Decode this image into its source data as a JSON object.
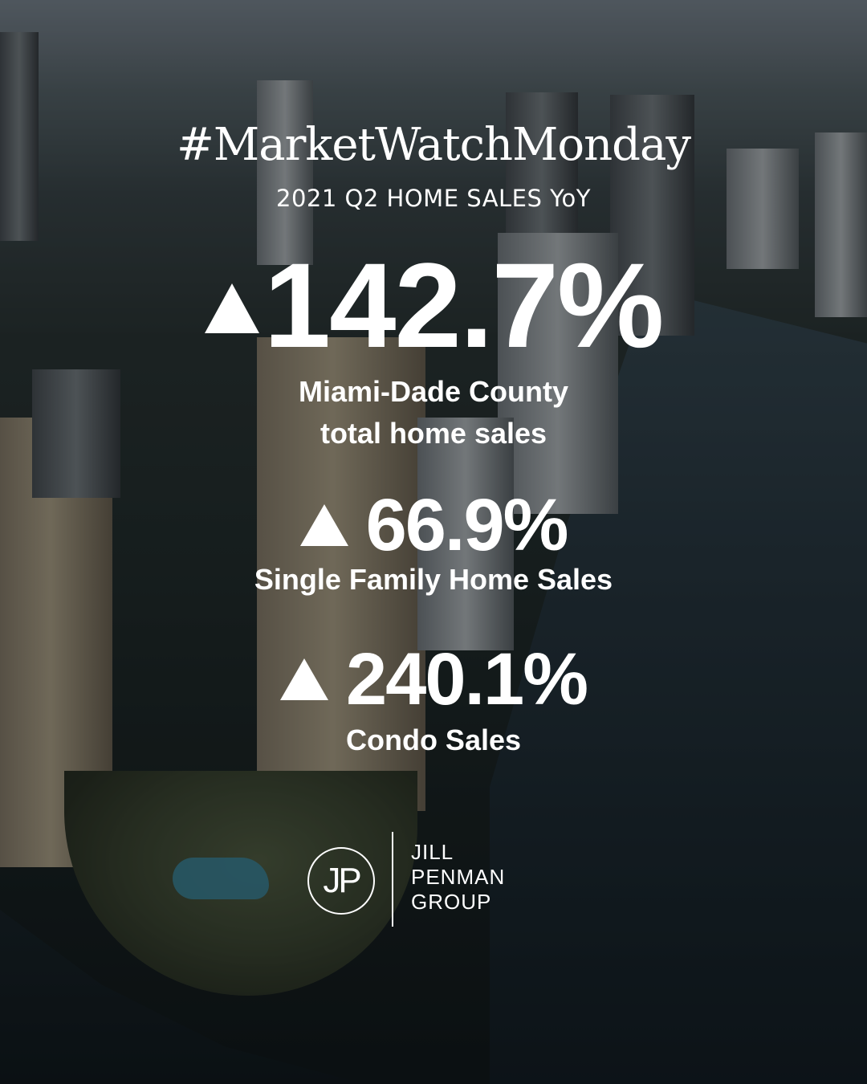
{
  "header": {
    "hashtag": "#MarketWatchMonday",
    "subtitle": "2021 Q2 HOME SALES YoY"
  },
  "stats": [
    {
      "icon": "up-triangle-icon",
      "value": "142.7%",
      "label_line1": "Miami-Dade County",
      "label_line2": "total home sales"
    },
    {
      "icon": "up-triangle-icon",
      "value": "66.9%",
      "label_line1": "Single Family Home Sales"
    },
    {
      "icon": "up-triangle-icon",
      "value": "240.1%",
      "label_line1": "Condo Sales"
    }
  ],
  "logo": {
    "monogram": "JP",
    "lines": [
      "JILL",
      "PENMAN",
      "GROUP"
    ]
  },
  "colors": {
    "text": "#ffffff",
    "overlay": "rgba(0,0,0,0.38)"
  }
}
